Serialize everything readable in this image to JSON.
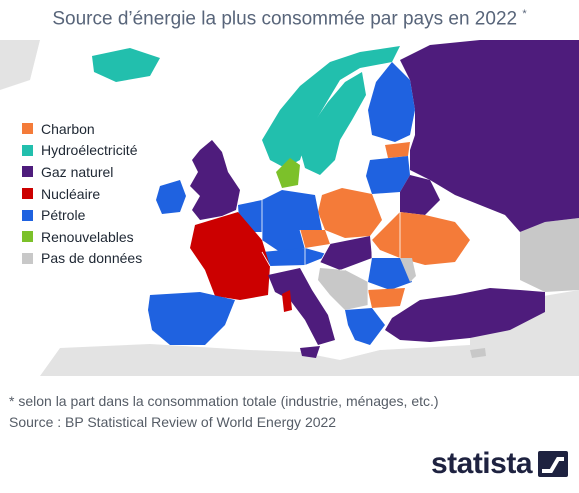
{
  "title": "Source d’énergie la plus consommée par pays en 2022",
  "title_marker": "*",
  "legend": [
    {
      "label": "Charbon",
      "color": "#f47b39"
    },
    {
      "label": "Hydroélectricité",
      "color": "#22bfad"
    },
    {
      "label": "Gaz naturel",
      "color": "#4e1c7c"
    },
    {
      "label": "Nucléaire",
      "color": "#cc0000"
    },
    {
      "label": "Pétrole",
      "color": "#1f62e0"
    },
    {
      "label": "Renouvelables",
      "color": "#7cc12a"
    },
    {
      "label": "Pas de données",
      "color": "#c8c8c8"
    }
  ],
  "footnote": "* selon la part dans la consommation totale (industrie, ménages, etc.)",
  "source": "Source : BP Statistical Review of World Energy 2022",
  "brand": "statista",
  "colors": {
    "sea": "#ffffff",
    "background_land": "#e3e3e3",
    "title": "#58657a",
    "border": "#ffffff"
  }
}
